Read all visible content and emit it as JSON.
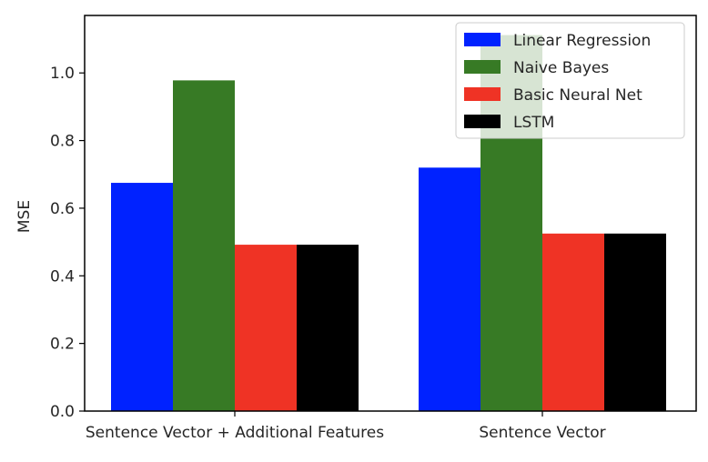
{
  "chart_data": {
    "type": "bar",
    "categories": [
      "Sentence Vector + Additional Features",
      "Sentence Vector"
    ],
    "series": [
      {
        "name": "Linear Regression",
        "values": [
          0.675,
          0.72
        ],
        "color": "#0022ff"
      },
      {
        "name": "Naive Bayes",
        "values": [
          0.978,
          1.112
        ],
        "color": "#377a25"
      },
      {
        "name": "Basic Neural Net",
        "values": [
          0.492,
          0.525
        ],
        "color": "#ef3325"
      },
      {
        "name": "LSTM",
        "values": [
          0.492,
          0.525
        ],
        "color": "#000000"
      }
    ],
    "title": "",
    "xlabel": "",
    "ylabel": "MSE",
    "ylim": [
      0,
      1.17
    ],
    "yticks": [
      "0.0",
      "0.2",
      "0.4",
      "0.6",
      "0.8",
      "1.0"
    ],
    "grid": false,
    "legend_position": "top-right"
  }
}
